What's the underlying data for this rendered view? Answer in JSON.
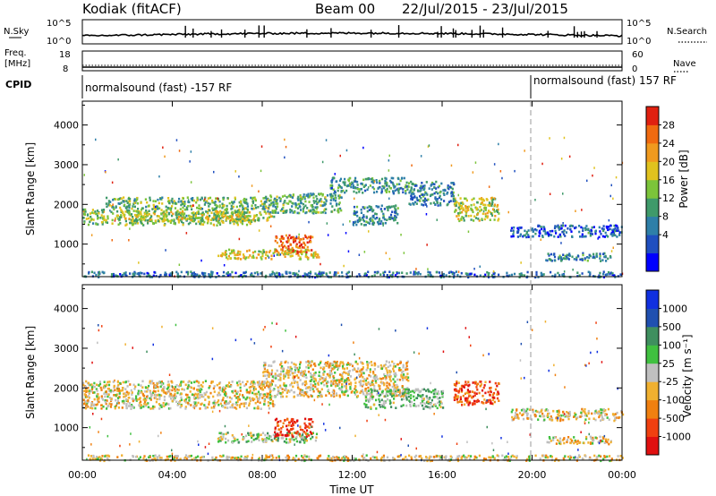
{
  "header": {
    "station": "Kodiak (fitACF)",
    "beam": "Beam 00",
    "date_range": "22/Jul/2015 - 23/Jul/2015"
  },
  "strips": {
    "nsky": {
      "left_label": "N.Sky",
      "right_label": "N.Search",
      "left_ticks": [
        "10^5",
        "10^0"
      ],
      "right_ticks": [
        "10^5",
        "10^0"
      ]
    },
    "freq": {
      "left_label_1": "Freq.",
      "left_label_2": "[MHz]",
      "right_label": "Nave",
      "left_ticks": [
        "18",
        "8"
      ],
      "right_ticks": [
        "60",
        "0"
      ]
    },
    "cpid": {
      "label": "CPID",
      "segments": [
        {
          "text": "normalsound (fast) -157 RF",
          "start_hour": 0
        },
        {
          "text": "normalsound (fast) 157 RF",
          "start_hour": 20
        }
      ]
    }
  },
  "chart_data": [
    {
      "type": "heatmap",
      "panel": "power",
      "ylabel": "Slant Range [km]",
      "x_range_hours": [
        0,
        24
      ],
      "ylim": [
        180,
        4600
      ],
      "y_ticks": [
        1000,
        2000,
        3000,
        4000
      ],
      "colorbar": {
        "label": "Power [dB]",
        "ticks": [
          "28",
          "24",
          "20",
          "16",
          "12",
          "8",
          "4"
        ],
        "colors": [
          "#0000ff",
          "#1f4fbf",
          "#2e7fa8",
          "#3f9a6a",
          "#7cc43a",
          "#e0c21e",
          "#f09a1e",
          "#f06a10",
          "#e02010"
        ]
      },
      "echo_regions": [
        {
          "t0": 0.0,
          "t1": 7.5,
          "r0": 1500,
          "r1": 1900,
          "level": 0.5
        },
        {
          "t0": 1.0,
          "t1": 8.5,
          "r0": 1900,
          "r1": 2200,
          "level": 0.45
        },
        {
          "t0": 2.0,
          "t1": 8.5,
          "r0": 1600,
          "r1": 1850,
          "level": 0.55
        },
        {
          "t0": 8.0,
          "t1": 11.5,
          "r0": 1800,
          "r1": 2300,
          "level": 0.4
        },
        {
          "t0": 6.0,
          "t1": 10.5,
          "r0": 650,
          "r1": 900,
          "level": 0.6
        },
        {
          "t0": 8.5,
          "t1": 10.2,
          "r0": 800,
          "r1": 1250,
          "level": 0.85
        },
        {
          "t0": 11.0,
          "t1": 14.5,
          "r0": 2300,
          "r1": 2700,
          "level": 0.35
        },
        {
          "t0": 12.0,
          "t1": 14.0,
          "r0": 1500,
          "r1": 2000,
          "level": 0.3
        },
        {
          "t0": 16.5,
          "t1": 18.5,
          "r0": 1600,
          "r1": 2200,
          "level": 0.55
        },
        {
          "t0": 14.5,
          "t1": 16.5,
          "r0": 2000,
          "r1": 2600,
          "level": 0.3
        },
        {
          "t0": 19.0,
          "t1": 24.0,
          "r0": 1200,
          "r1": 1500,
          "level": 0.2
        },
        {
          "t0": 20.5,
          "t1": 23.5,
          "r0": 600,
          "r1": 800,
          "level": 0.3
        },
        {
          "t0": 0.0,
          "t1": 24.0,
          "r0": 190,
          "r1": 330,
          "level": 0.25
        }
      ]
    },
    {
      "type": "heatmap",
      "panel": "velocity",
      "xlabel": "Time UT",
      "ylabel": "Slant Range [km]",
      "x_range_hours": [
        0,
        24
      ],
      "x_ticks": [
        "00:00",
        "04:00",
        "08:00",
        "12:00",
        "16:00",
        "20:00",
        "00:00"
      ],
      "ylim": [
        180,
        4600
      ],
      "y_ticks": [
        1000,
        2000,
        3000,
        4000
      ],
      "colorbar": {
        "label": "Velocity [m s⁻¹]",
        "ticks": [
          "1000",
          "500",
          "100",
          "25",
          "-25",
          "-100",
          "-500",
          "-1000"
        ],
        "colors": [
          "#e01010",
          "#f04010",
          "#f08010",
          "#f0b030",
          "#bfbfbf",
          "#40c040",
          "#3f8f5f",
          "#2050b0",
          "#1030e0"
        ]
      },
      "echo_regions": [
        {
          "t0": 0.0,
          "t1": 8.5,
          "r0": 1500,
          "r1": 2200,
          "level": 0.44
        },
        {
          "t0": 8.0,
          "t1": 14.5,
          "r0": 1800,
          "r1": 2700,
          "level": 0.44
        },
        {
          "t0": 6.0,
          "t1": 10.5,
          "r0": 650,
          "r1": 900,
          "level": 0.55
        },
        {
          "t0": 8.5,
          "t1": 10.2,
          "r0": 800,
          "r1": 1250,
          "level": 0.1
        },
        {
          "t0": 12.5,
          "t1": 16.0,
          "r0": 1500,
          "r1": 2000,
          "level": 0.6
        },
        {
          "t0": 16.5,
          "t1": 18.5,
          "r0": 1600,
          "r1": 2200,
          "level": 0.2
        },
        {
          "t0": 19.0,
          "t1": 24.0,
          "r0": 1200,
          "r1": 1500,
          "level": 0.44
        },
        {
          "t0": 20.5,
          "t1": 23.5,
          "r0": 600,
          "r1": 800,
          "level": 0.44
        },
        {
          "t0": 0.0,
          "t1": 24.0,
          "r0": 190,
          "r1": 330,
          "level": 0.44
        }
      ]
    }
  ]
}
